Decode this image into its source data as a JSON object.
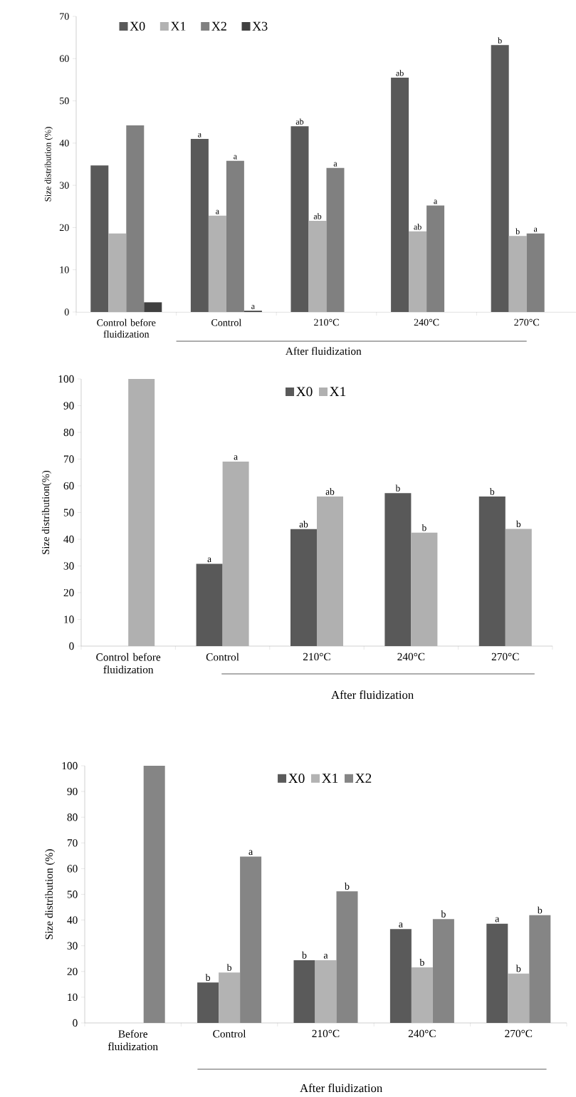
{
  "chart_data": [
    {
      "type": "bar",
      "ylabel": "Size distribution (%)",
      "categories": [
        "Control before fluidization",
        "Control",
        "210°C",
        "240°C",
        "270°C"
      ],
      "ylim": [
        0,
        70
      ],
      "yticks": [
        0,
        10,
        20,
        30,
        40,
        50,
        60,
        70
      ],
      "legend": "top left",
      "annotations": [
        "After fluidization"
      ],
      "series": [
        {
          "name": "X0",
          "color": "#595959",
          "values": [
            34.7,
            41,
            44,
            55.5,
            63.2
          ],
          "value_labels": [
            null,
            "a",
            "ab",
            "ab",
            "b"
          ]
        },
        {
          "name": "X1",
          "color": "#b2b2b2",
          "values": [
            18.6,
            22.8,
            21.6,
            19.1,
            18
          ],
          "value_labels": [
            null,
            "a",
            "ab",
            "ab",
            "b"
          ]
        },
        {
          "name": "X2",
          "color": "#808080",
          "values": [
            44.2,
            35.8,
            34.1,
            25.2,
            18.6
          ],
          "value_labels": [
            null,
            "a",
            "a",
            "a",
            "a"
          ]
        },
        {
          "name": "X3",
          "color": "#404040",
          "values": [
            2.3,
            0.3,
            null,
            null,
            null
          ],
          "value_labels": [
            null,
            "a",
            null,
            null,
            null
          ]
        }
      ]
    },
    {
      "type": "bar",
      "ylabel": "Size distribution(%)",
      "categories": [
        "Control before fluidization",
        "Control",
        "210°C",
        "240°C",
        "270°C"
      ],
      "ylim": [
        0,
        100
      ],
      "yticks": [
        0,
        10,
        20,
        30,
        40,
        50,
        60,
        70,
        80,
        90,
        100
      ],
      "legend": "top",
      "annotations": [
        "After fluidization"
      ],
      "series": [
        {
          "name": "X0",
          "color": "#595959",
          "values": [
            null,
            30.8,
            43.8,
            57.3,
            56
          ],
          "value_labels": [
            null,
            "a",
            "ab",
            "b",
            "b"
          ]
        },
        {
          "name": "X1",
          "color": "#b0b0b0",
          "values": [
            100,
            69.1,
            56,
            42.5,
            43.9
          ],
          "value_labels": [
            null,
            "a",
            "ab",
            "b",
            "b"
          ]
        }
      ]
    },
    {
      "type": "bar",
      "ylabel": "Size distribution (%)",
      "categories": [
        "Before fluidization",
        "Control",
        "210°C",
        "240°C",
        "270°C"
      ],
      "ylim": [
        0,
        100
      ],
      "yticks": [
        0,
        10,
        20,
        30,
        40,
        50,
        60,
        70,
        80,
        90,
        100
      ],
      "legend": "top",
      "annotations": [
        "After fluidization"
      ],
      "series": [
        {
          "name": "X0",
          "color": "#5a5a5a",
          "values": [
            null,
            15.7,
            24.4,
            36.5,
            38.6
          ],
          "value_labels": [
            null,
            "b",
            "b",
            "a",
            "a"
          ]
        },
        {
          "name": "X1",
          "color": "#b3b3b3",
          "values": [
            null,
            19.6,
            24.4,
            21.6,
            19.2
          ],
          "value_labels": [
            null,
            "b",
            "a",
            "b",
            "b"
          ]
        },
        {
          "name": "X2",
          "color": "#858585",
          "values": [
            100,
            64.7,
            51.2,
            40.4,
            41.9
          ],
          "value_labels": [
            null,
            "a",
            "b",
            "b",
            "b"
          ]
        }
      ]
    }
  ]
}
